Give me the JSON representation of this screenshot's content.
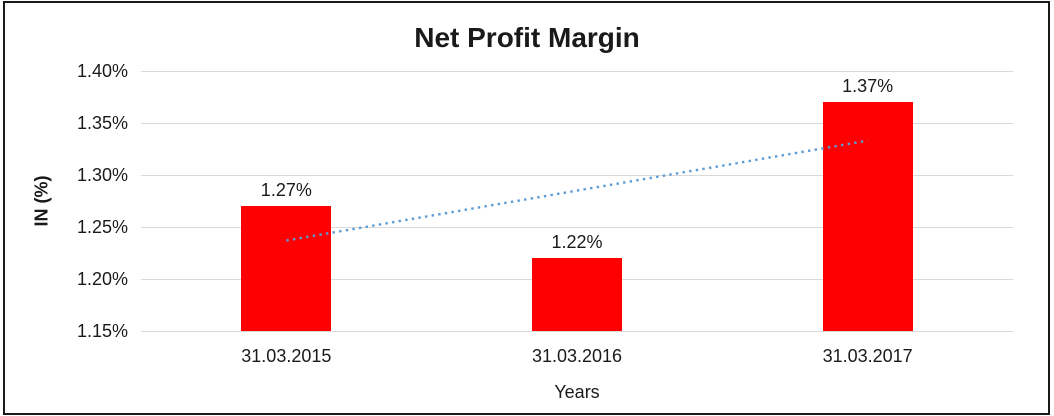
{
  "chart_data": {
    "type": "bar",
    "title": "Net Profit Margin",
    "categories": [
      "31.03.2015",
      "31.03.2016",
      "31.03.2017"
    ],
    "values": [
      1.27,
      1.22,
      1.37
    ],
    "data_labels": [
      "1.27%",
      "1.22%",
      "1.37%"
    ],
    "xlabel": "Years",
    "ylabel": "IN (%)",
    "ylim": [
      1.15,
      1.4
    ],
    "y_tick_step": 0.05,
    "y_ticks": [
      {
        "value": 1.4,
        "label": "1.40%"
      },
      {
        "value": 1.35,
        "label": "1.35%"
      },
      {
        "value": 1.3,
        "label": "1.30%"
      },
      {
        "value": 1.25,
        "label": "1.25%"
      },
      {
        "value": 1.2,
        "label": "1.20%"
      },
      {
        "value": 1.15,
        "label": "1.15%"
      }
    ],
    "grid": true,
    "legend": "none",
    "colors": {
      "bar": "#FF0000",
      "gridline": "#D9D9D9",
      "trendline": "#5B9BD5",
      "text": "#1A1A1A",
      "frame_border": "#1A1A1A",
      "background": "#FFFFFF"
    },
    "trendline": {
      "style": "dotted",
      "start": {
        "category_index": 0,
        "value": 1.237
      },
      "end": {
        "category_index": 2,
        "value": 1.333
      }
    }
  }
}
